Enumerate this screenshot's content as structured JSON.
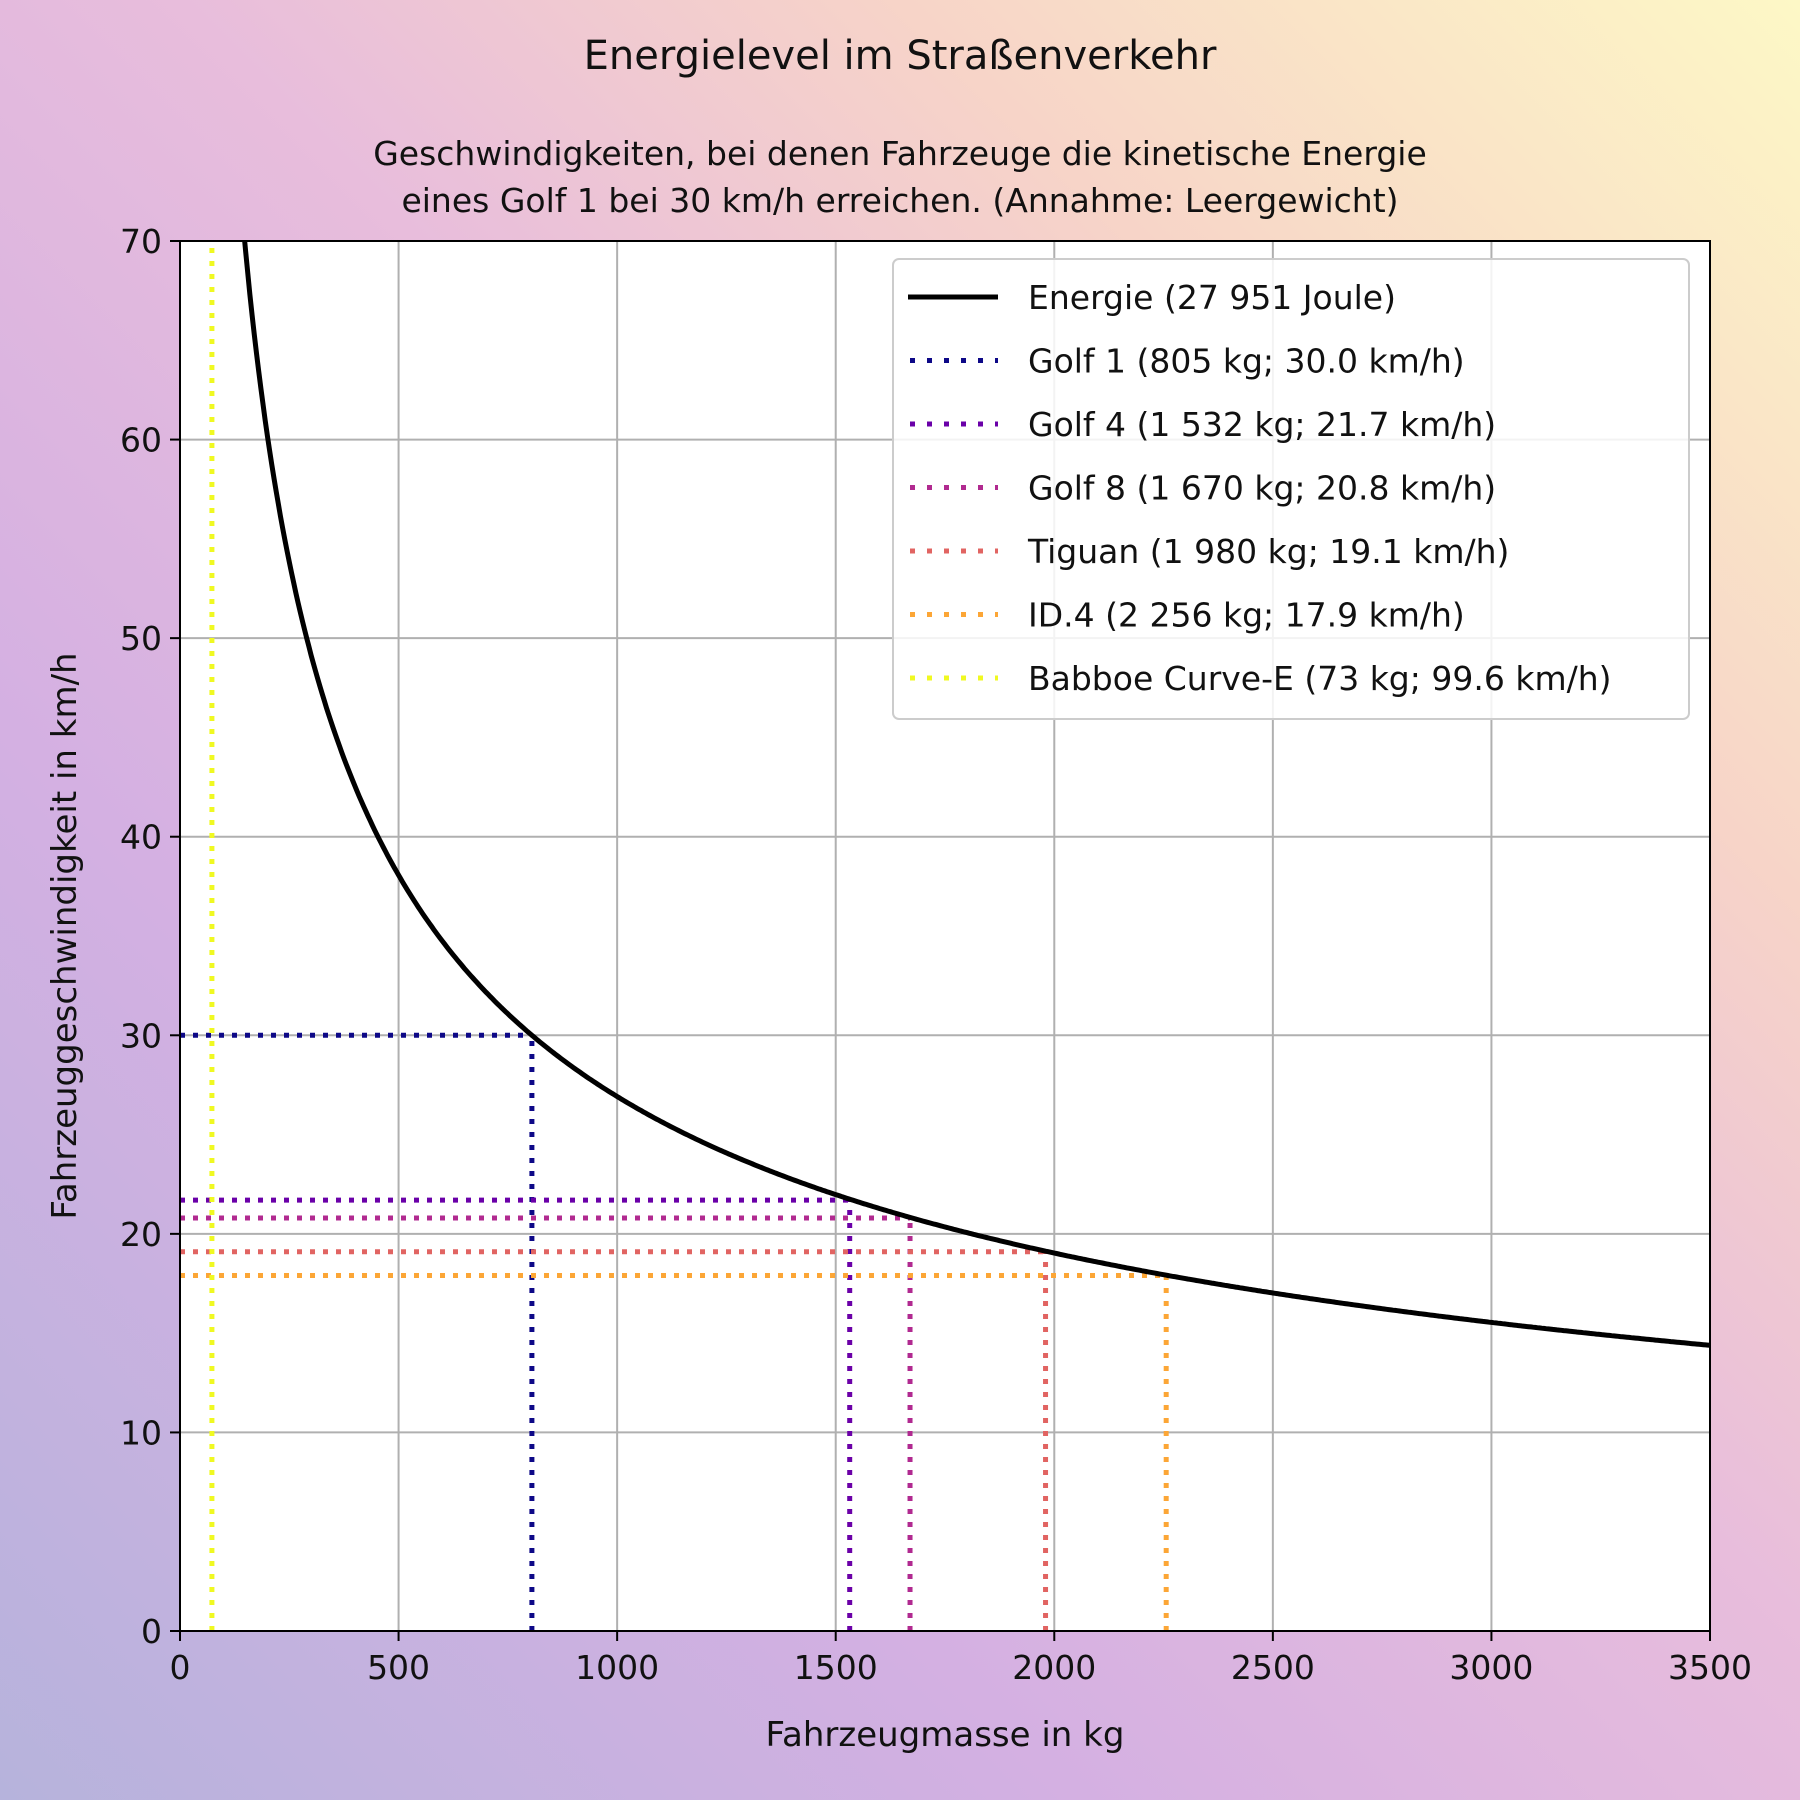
{
  "chart_data": {
    "type": "line",
    "title": "Energielevel im Straßenverkehr",
    "subtitle_lines": [
      "Geschwindigkeiten, bei denen Fahrzeuge die kinetische Energie",
      "eines Golf 1 bei 30 km/h erreichen. (Annahme: Leergewicht)"
    ],
    "xlabel": "Fahrzeugmasse in kg",
    "ylabel": "Fahrzeuggeschwindigkeit in km/h",
    "xlim": [
      0,
      3500
    ],
    "ylim": [
      0,
      70
    ],
    "xticks": [
      0,
      500,
      1000,
      1500,
      2000,
      2500,
      3000,
      3500
    ],
    "yticks": [
      0,
      10,
      20,
      30,
      40,
      50,
      60,
      70
    ],
    "grid": true,
    "legend_position": "top-right",
    "energy_joule": 27951,
    "curve": {
      "name": "Energie (27 951 Joule)",
      "color": "#000000",
      "x_range": [
        50,
        3500
      ]
    },
    "vehicles": [
      {
        "name": "Golf 1 (805 kg; 30.0 km/h)",
        "mass": 805,
        "speed": 30.0,
        "color": "#0d0887"
      },
      {
        "name": "Golf 4 (1 532 kg; 21.7 km/h)",
        "mass": 1532,
        "speed": 21.7,
        "color": "#6a00a8"
      },
      {
        "name": "Golf 8 (1 670 kg; 20.8 km/h)",
        "mass": 1670,
        "speed": 20.8,
        "color": "#b12a90"
      },
      {
        "name": "Tiguan (1 980 kg; 19.1 km/h)",
        "mass": 1980,
        "speed": 19.1,
        "color": "#e16462"
      },
      {
        "name": "ID.4 (2 256 kg; 17.9 km/h)",
        "mass": 2256,
        "speed": 17.9,
        "color": "#fca636"
      },
      {
        "name": "Babboe Curve-E (73 kg; 99.6 km/h)",
        "mass": 73,
        "speed": 99.6,
        "color": "#f0f921"
      }
    ]
  }
}
